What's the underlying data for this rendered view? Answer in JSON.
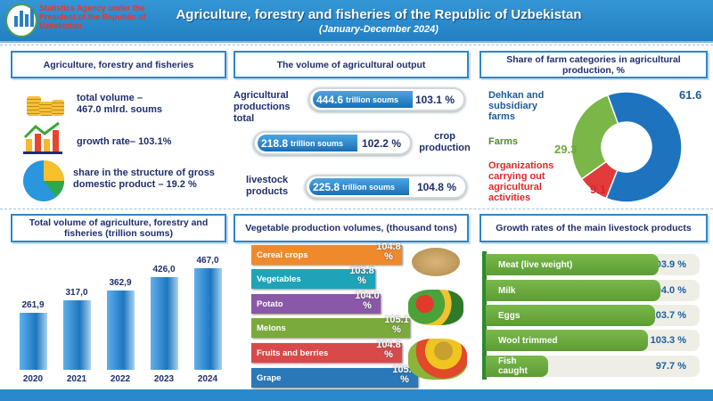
{
  "header": {
    "agency": "Statistics Agency under the President of the Republic of Uzbekistan",
    "logo_text": "UZSTAT",
    "title": "Agriculture, forestry and fisheries of the Republic of Uzbekistan",
    "subtitle": "(January-December 2024)"
  },
  "panel1": {
    "title": "Agriculture, forestry and fisheries",
    "items": [
      {
        "icon": "coins-icon",
        "text1": "total volume –",
        "text2": "467.0 mlrd. soums"
      },
      {
        "icon": "growth-chart-icon",
        "text1": "growth rate– 103.1%"
      },
      {
        "icon": "pie-chart-icon",
        "text1": "share in the structure of gross",
        "text2": "domestic product – 19.2 %"
      }
    ]
  },
  "panel2": {
    "title": "The volume of agricultural output",
    "rows": [
      {
        "label": "Agricultural productions total",
        "value": "444.6",
        "unit": "trillion soums",
        "pct": "103.1 %"
      },
      {
        "label": "crop production",
        "value": "218.8",
        "unit": "trillion soums",
        "pct": "102.2 %"
      },
      {
        "label": "livestock products",
        "value": "225.8",
        "unit": "trillion soums",
        "pct": "104.8 %"
      }
    ]
  },
  "colors": {
    "header": "#2a88cc",
    "dehkan": "#1e73be",
    "farms": "#7ab648",
    "organizations": "#e23b3b"
  },
  "chart_data": [
    {
      "type": "pie",
      "title": "Share of farm categories in agricultural production, %",
      "categories": [
        "Dehkan and subsidiary farms",
        "Farms",
        "Organizations carrying out agricultural activities"
      ],
      "values": [
        61.6,
        29.3,
        9.1
      ],
      "labels": [
        "61.6",
        "29.3",
        "9.1"
      ]
    },
    {
      "type": "bar",
      "title": "Total volume of agriculture, forestry and fisheries (trillion soums)",
      "categories": [
        "2020",
        "2021",
        "2022",
        "2023",
        "2024"
      ],
      "values": [
        261.9,
        317.0,
        362.9,
        426.0,
        467.0
      ],
      "labels": [
        "261,9",
        "317,0",
        "362,9",
        "426,0",
        "467,0"
      ]
    },
    {
      "type": "bar",
      "orientation": "horizontal",
      "title": "Vegetable production volumes, (thousand tons)",
      "categories": [
        "Cereal crops",
        "Vegetables",
        "Potato",
        "Melons",
        "Fruits and berries",
        "Grape"
      ],
      "values": [
        104.8,
        103.8,
        104.0,
        105.1,
        104.8,
        105.4
      ],
      "labels": [
        "104.8 %",
        "103.8 %",
        "104.0 %",
        "105.1 %",
        "104.8 %",
        "105.4 %"
      ],
      "colors": [
        "#ef8a2c",
        "#1fa3b8",
        "#8a58a8",
        "#7aaa3c",
        "#d84a4a",
        "#2a78b8"
      ]
    },
    {
      "type": "bar",
      "orientation": "horizontal",
      "title": "Growth rates of the main livestock products",
      "categories": [
        "Meat (live weight)",
        "Milk",
        "Eggs",
        "Wool trimmed",
        "Fish caught"
      ],
      "values": [
        103.9,
        104.0,
        103.7,
        103.3,
        97.7
      ],
      "labels": [
        "103.9 %",
        "104.0 %",
        "103.7 %",
        "103.3 %",
        "97.7 %"
      ]
    }
  ]
}
